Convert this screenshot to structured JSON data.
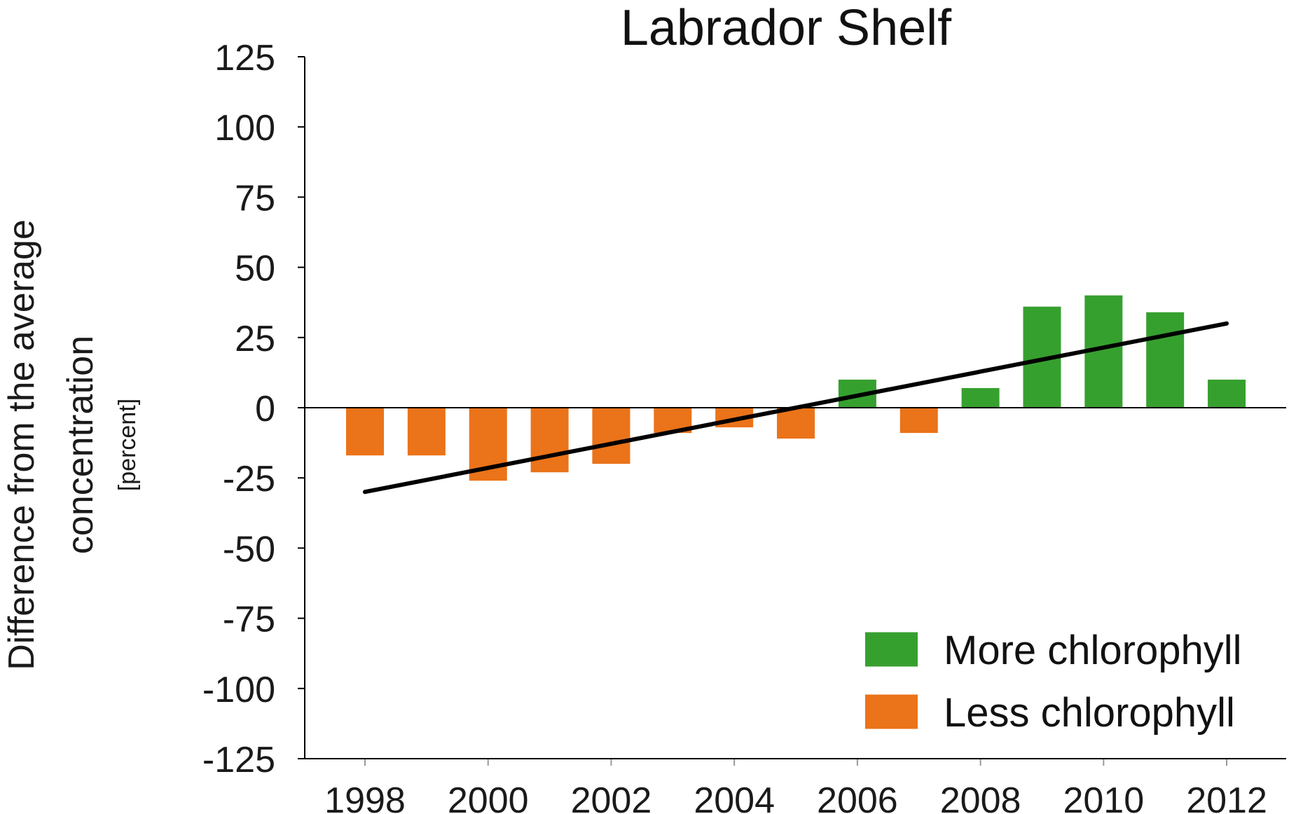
{
  "chart_data": {
    "type": "bar",
    "title": "Labrador Shelf",
    "ylabel_line1": "Difference from the average",
    "ylabel_line2": "concentration",
    "ylabel_unit": "[percent]",
    "xlabel": "",
    "ylim": [
      -125,
      125
    ],
    "yticks": [
      125,
      100,
      75,
      50,
      25,
      0,
      -25,
      -50,
      -75,
      -100,
      -125
    ],
    "xtick_labels": [
      "1998",
      "2000",
      "2002",
      "2004",
      "2006",
      "2008",
      "2010",
      "2012"
    ],
    "categories": [
      "1998",
      "1999",
      "2000",
      "2001",
      "2002",
      "2003",
      "2004",
      "2005",
      "2006",
      "2007",
      "2008",
      "2009",
      "2010",
      "2011",
      "2012"
    ],
    "values": [
      -17,
      -17,
      -26,
      -23,
      -20,
      -9,
      -7,
      -11,
      10,
      -9,
      7,
      36,
      40,
      34,
      10
    ],
    "trendline": {
      "start": {
        "x": "1998",
        "y": -30
      },
      "end": {
        "x": "2012",
        "y": 30
      }
    },
    "legend": [
      {
        "label": "More chlorophyll",
        "color": "#36a02f"
      },
      {
        "label": "Less chlorophyll",
        "color": "#eb7319"
      }
    ],
    "legend_position": "bottom-right",
    "colors": {
      "positive": "#36a02f",
      "negative": "#eb7319",
      "trend": "#000000",
      "axis": "#000000"
    }
  }
}
